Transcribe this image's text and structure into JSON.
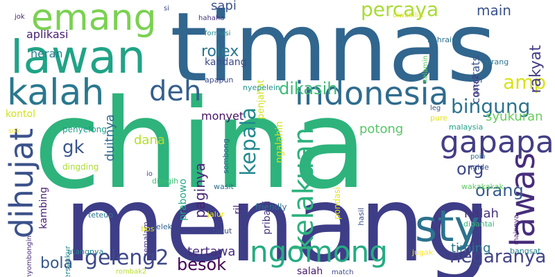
{
  "palette": {
    "c1": "#2a9d6d",
    "c2": "#33638d",
    "c3": "#1f9a8a",
    "c4": "#472a7a",
    "c5": "#79d151",
    "c6": "#3fbc73",
    "c7": "#440154",
    "c8": "#fde725",
    "c9": "#26828e",
    "c10": "#3b528b",
    "c11": "#a0da39",
    "c12": "#482475"
  },
  "words": [
    {
      "text": "china",
      "color": "#2eb37c"
    },
    {
      "text": "menang",
      "color": "#3e3d87"
    },
    {
      "text": "timnas",
      "color": "#31668e"
    },
    {
      "text": "lawan",
      "color": "#20a386"
    },
    {
      "text": "emang",
      "color": "#7ad151"
    },
    {
      "text": "kalah",
      "color": "#2a788e"
    },
    {
      "text": "indonesia",
      "color": "#2f6c8e"
    },
    {
      "text": "sty",
      "color": "#2c728e"
    },
    {
      "text": "dihujat",
      "color": "#3b528b"
    },
    {
      "text": "ngomong",
      "color": "#25ab82"
    },
    {
      "text": "gapapa",
      "color": "#433e85"
    },
    {
      "text": "lawas",
      "color": "#472d7b"
    },
    {
      "text": "deh",
      "color": "#355f8d"
    },
    {
      "text": "kelakuan",
      "color": "#2db27d"
    },
    {
      "text": "percaya",
      "color": "#a8db34"
    },
    {
      "text": "geleng2",
      "color": "#3e4989"
    },
    {
      "text": "bingung",
      "color": "#2c738e"
    },
    {
      "text": "negaranya",
      "color": "#414487"
    },
    {
      "text": "kepala",
      "color": "#23898e"
    },
    {
      "text": "dikasih",
      "color": "#3bbb75"
    },
    {
      "text": "amp",
      "color": "#d8e219"
    },
    {
      "text": "rakyat",
      "color": "#433d84"
    },
    {
      "text": "gk",
      "color": "#39568c"
    },
    {
      "text": "orang",
      "color": "#365c8d"
    },
    {
      "text": "bola",
      "color": "#38588c"
    },
    {
      "text": "besok",
      "color": "#440154"
    },
    {
      "text": "rolex",
      "color": "#2a768e"
    },
    {
      "text": "org",
      "color": "#3f4889"
    },
    {
      "text": "paginya",
      "color": "#482475"
    },
    {
      "text": "main",
      "color": "#3a548c"
    },
    {
      "text": "syukuran",
      "color": "#67cc5c"
    },
    {
      "text": "sapi",
      "color": "#3b528b"
    },
    {
      "text": "dana",
      "color": "#b5de2b"
    },
    {
      "text": "duitnya",
      "color": "#31688e"
    },
    {
      "text": "tertawa",
      "color": "#472c7a"
    },
    {
      "text": "potong",
      "color": "#56c667"
    },
    {
      "text": "halah",
      "color": "#46327e"
    },
    {
      "text": "timing",
      "color": "#2b758e"
    },
    {
      "text": "aplikasi",
      "color": "#482071"
    },
    {
      "text": "heran",
      "color": "#287c8e"
    },
    {
      "text": "kandang",
      "color": "#3e4a89"
    },
    {
      "text": "monyet",
      "color": "#471365"
    },
    {
      "text": "congrats",
      "color": "#3a548c"
    },
    {
      "text": "kambing",
      "color": "#481d6f"
    },
    {
      "text": "prabowo",
      "color": "#22a785"
    },
    {
      "text": "pribadi",
      "color": "#46327e"
    },
    {
      "text": "salah",
      "color": "#48186a"
    },
    {
      "text": "ril",
      "color": "#482374"
    },
    {
      "text": "kontol",
      "color": "#d2e21b"
    },
    {
      "text": "ngalahin",
      "color": "#cde11d"
    },
    {
      "text": "penjahat",
      "color": "#d0e11c"
    },
    {
      "text": "pondasi",
      "color": "#e5e419"
    },
    {
      "text": "penyefong",
      "color": "#1e9c89"
    },
    {
      "text": "dingding",
      "color": "#addc30"
    },
    {
      "text": "friendly",
      "color": "#2e6e8e"
    },
    {
      "text": "nyepelein",
      "color": "#1f958b"
    },
    {
      "text": "wasit",
      "color": "#2d708e"
    },
    {
      "text": "jalur",
      "color": "#e7e419"
    },
    {
      "text": "takut",
      "color": "#3d4e8a"
    },
    {
      "text": "ditagih",
      "color": "#3fbc73"
    },
    {
      "text": "semalam",
      "color": "#453882"
    },
    {
      "text": "apapun",
      "color": "#3e4a89"
    },
    {
      "text": "sombong",
      "color": "#33638d"
    },
    {
      "text": "bersyukur",
      "color": "#24878e"
    },
    {
      "text": "utangnya",
      "color": "#25848e"
    },
    {
      "text": "teteup",
      "color": "#2a768e"
    },
    {
      "text": "bos",
      "color": "#e5e419"
    },
    {
      "text": "jelek",
      "color": "#33628d"
    },
    {
      "text": "nyombongin",
      "color": "#472d7b"
    },
    {
      "text": "rombak2",
      "color": "#b8de29"
    },
    {
      "text": "match",
      "color": "#3e4989"
    },
    {
      "text": "hasil",
      "color": "#3b528b"
    },
    {
      "text": "mainnya",
      "color": "#481a6c"
    },
    {
      "text": "bangsat",
      "color": "#25838e"
    },
    {
      "text": "dibantai",
      "color": "#35b779"
    },
    {
      "text": "jugak",
      "color": "#fde725"
    },
    {
      "text": "wakakakak",
      "color": "#5ec962"
    },
    {
      "text": "poin",
      "color": "#2e6e8e"
    },
    {
      "text": "ngide",
      "color": "#3b528b"
    },
    {
      "text": "leg",
      "color": "#3b528b"
    },
    {
      "text": "pure",
      "color": "#e2e418"
    },
    {
      "text": "malaysia",
      "color": "#1fa088"
    },
    {
      "text": "gara2",
      "color": "#46337f"
    },
    {
      "text": "curang",
      "color": "#2b758e"
    },
    {
      "text": "kelamin",
      "color": "#5ec962"
    },
    {
      "text": "bahrain",
      "color": "#2c718e"
    },
    {
      "text": "diwakilin",
      "color": "#e4e419"
    },
    {
      "text": "formasi",
      "color": "#24878e"
    },
    {
      "text": "hahaha",
      "color": "#46327e"
    },
    {
      "text": "si",
      "color": "#3e4989"
    },
    {
      "text": "jok",
      "color": "#481f70"
    },
    {
      "text": "io",
      "color": "#3e4989"
    },
    {
      "text": "sok",
      "color": "#fde725"
    }
  ]
}
